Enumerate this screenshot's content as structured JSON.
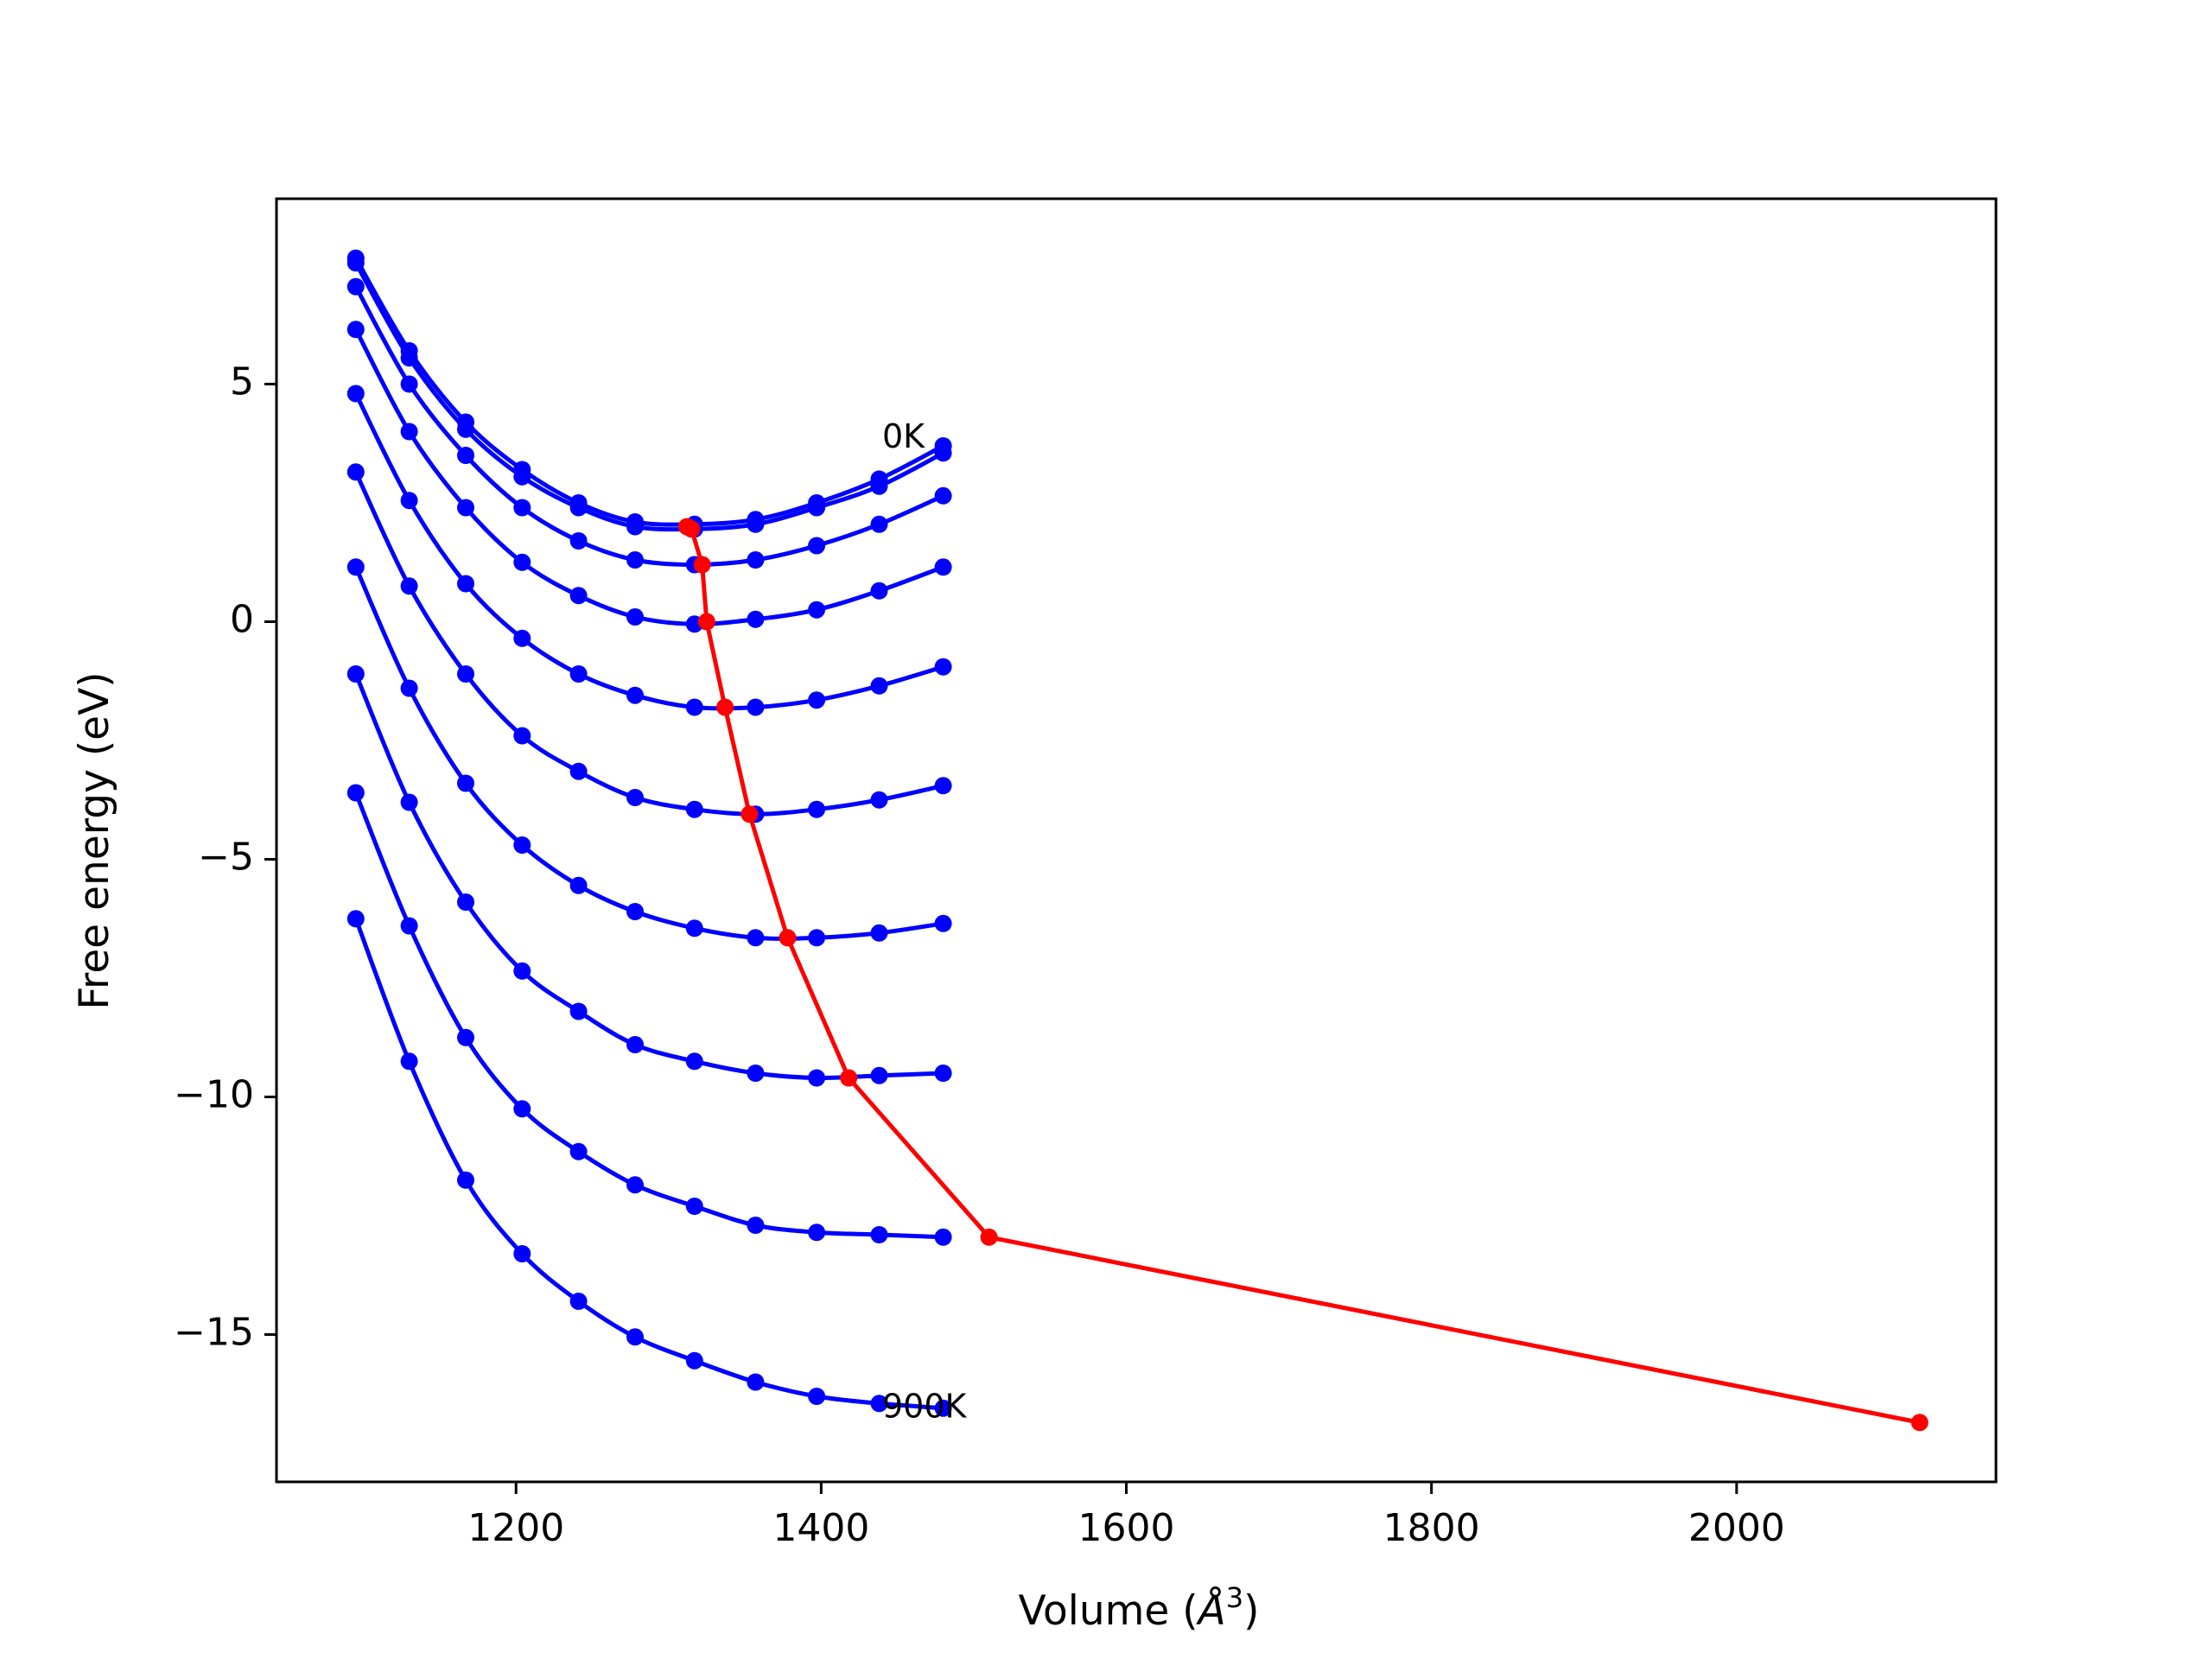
{
  "chart_data": {
    "type": "line",
    "title": "",
    "xlabel_prefix": "Volume (",
    "xlabel_unit": "Å",
    "xlabel_exp": "3",
    "xlabel_suffix": ")",
    "ylabel": "Free energy (eV)",
    "xlim": [
      1043,
      2170
    ],
    "ylim": [
      -18.1,
      8.9
    ],
    "xticks": [
      1200,
      1400,
      1600,
      1800,
      2000
    ],
    "yticks": [
      5,
      0,
      -5,
      -10,
      -15
    ],
    "ytick_labels": [
      "5",
      "0",
      "−5",
      "−10",
      "−15"
    ],
    "grid": false,
    "colors": {
      "curves": "#0000ff",
      "minima": "#ff0000"
    },
    "x": [
      1095,
      1130,
      1167,
      1204,
      1241,
      1278,
      1317,
      1357,
      1397,
      1438,
      1480
    ],
    "series": [
      {
        "values": [
          7.65,
          5.7,
          4.2,
          3.2,
          2.5,
          2.1,
          2.05,
          2.15,
          2.5,
          3.0,
          3.7
        ]
      },
      {
        "values": [
          7.55,
          5.55,
          4.05,
          3.05,
          2.4,
          2.0,
          1.95,
          2.05,
          2.4,
          2.85,
          3.55
        ]
      },
      {
        "values": [
          7.05,
          5.0,
          3.5,
          2.4,
          1.7,
          1.3,
          1.2,
          1.3,
          1.6,
          2.05,
          2.65
        ]
      },
      {
        "values": [
          6.15,
          4.0,
          2.4,
          1.25,
          0.55,
          0.1,
          -0.05,
          0.05,
          0.25,
          0.65,
          1.15
        ]
      },
      {
        "values": [
          4.8,
          2.55,
          0.8,
          -0.35,
          -1.1,
          -1.55,
          -1.8,
          -1.8,
          -1.65,
          -1.35,
          -0.95
        ]
      },
      {
        "values": [
          3.15,
          0.75,
          -1.1,
          -2.4,
          -3.15,
          -3.7,
          -3.95,
          -4.05,
          -3.95,
          -3.75,
          -3.45
        ]
      },
      {
        "values": [
          1.15,
          -1.4,
          -3.4,
          -4.7,
          -5.55,
          -6.1,
          -6.45,
          -6.65,
          -6.65,
          -6.55,
          -6.35
        ]
      },
      {
        "values": [
          -1.1,
          -3.8,
          -5.9,
          -7.35,
          -8.2,
          -8.9,
          -9.25,
          -9.5,
          -9.6,
          -9.55,
          -9.5
        ]
      },
      {
        "values": [
          -3.6,
          -6.4,
          -8.75,
          -10.25,
          -11.15,
          -11.85,
          -12.3,
          -12.7,
          -12.85,
          -12.9,
          -12.95
        ]
      },
      {
        "values": [
          -6.25,
          -9.25,
          -11.75,
          -13.3,
          -14.3,
          -15.05,
          -15.55,
          -16.0,
          -16.3,
          -16.45,
          -16.55
        ]
      }
    ],
    "minima_line": {
      "x": [
        1312,
        1315,
        1322,
        1325,
        1337,
        1353,
        1378,
        1418,
        1510,
        2120
      ],
      "y": [
        2.0,
        1.95,
        1.2,
        0.0,
        -1.8,
        -4.05,
        -6.65,
        -9.6,
        -12.95,
        -16.85
      ]
    },
    "annotations": [
      {
        "text": "0K",
        "x": 1440,
        "y": 3.85
      },
      {
        "text": "900K",
        "x": 1440,
        "y": -16.55
      }
    ]
  }
}
